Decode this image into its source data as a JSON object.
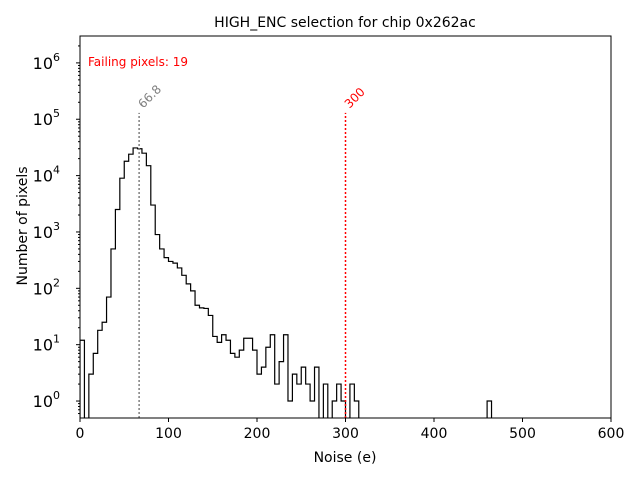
{
  "chart_data": {
    "type": "histogram",
    "title": "HIGH_ENC selection for chip 0x262ac",
    "xlabel": "Noise (e)",
    "ylabel": "Number of pixels",
    "xlim": [
      0,
      600
    ],
    "ylim_log": [
      0.5,
      3000000
    ],
    "y_scale": "log",
    "x_ticks": [
      0,
      100,
      200,
      300,
      400,
      500,
      600
    ],
    "y_ticks": [
      {
        "value": 1,
        "base": "10",
        "exp": "0"
      },
      {
        "value": 10,
        "base": "10",
        "exp": "1"
      },
      {
        "value": 100,
        "base": "10",
        "exp": "2"
      },
      {
        "value": 1000,
        "base": "10",
        "exp": "3"
      },
      {
        "value": 10000,
        "base": "10",
        "exp": "4"
      },
      {
        "value": 100000,
        "base": "10",
        "exp": "5"
      },
      {
        "value": 1000000,
        "base": "10",
        "exp": "6"
      }
    ],
    "annotation": "Failing pixels: 19",
    "annotation_color": "#ff0000",
    "vlines": [
      {
        "x": 66.8,
        "label": "66.8",
        "color": "#808080"
      },
      {
        "x": 300,
        "label": "300",
        "color": "#ff0000"
      }
    ],
    "bin_width": 5,
    "bin_start": 0,
    "counts": [
      12,
      0,
      3,
      7,
      18,
      25,
      70,
      500,
      2500,
      9000,
      18000,
      24000,
      31000,
      30000,
      25000,
      15000,
      3000,
      900,
      500,
      350,
      300,
      280,
      230,
      170,
      120,
      90,
      50,
      45,
      44,
      33,
      14,
      11,
      15,
      12,
      7,
      6,
      8,
      13,
      13,
      8,
      3,
      4,
      9,
      15,
      2,
      5,
      15,
      1,
      3,
      2,
      4,
      2,
      1,
      4,
      0,
      2,
      0,
      1,
      2,
      1,
      0,
      2,
      1,
      0,
      0,
      0,
      0,
      0,
      0,
      0,
      0,
      0,
      0,
      0,
      0,
      0,
      0,
      0,
      0,
      0,
      0,
      0,
      0,
      0,
      0,
      0,
      0,
      0,
      0,
      0,
      0,
      0,
      1,
      0,
      0,
      0,
      0,
      0,
      0,
      0,
      0,
      0,
      0,
      0,
      0,
      0,
      0,
      0,
      0,
      0,
      0,
      0,
      0,
      0,
      0,
      0,
      0,
      0,
      0,
      0
    ],
    "grid": false,
    "legend": "none"
  }
}
